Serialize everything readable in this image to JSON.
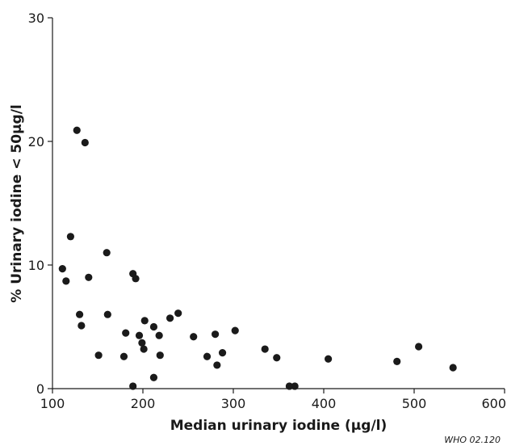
{
  "chart_data": {
    "type": "scatter",
    "title": "",
    "xlabel": "Median urinary iodine (μg/l)",
    "ylabel": "% Urinary iodine < 50μg/l",
    "xlim": [
      100,
      600
    ],
    "ylim": [
      0,
      30
    ],
    "xticks": [
      100,
      200,
      300,
      400,
      500,
      600
    ],
    "yticks": [
      0,
      10,
      20,
      30
    ],
    "grid": false,
    "legend": "none",
    "marker_color": "#1a1a1a",
    "points": [
      {
        "x": 111,
        "y": 9.7
      },
      {
        "x": 115,
        "y": 8.7
      },
      {
        "x": 120,
        "y": 12.3
      },
      {
        "x": 127,
        "y": 20.9
      },
      {
        "x": 130,
        "y": 6.0
      },
      {
        "x": 132,
        "y": 5.1
      },
      {
        "x": 136,
        "y": 19.9
      },
      {
        "x": 140,
        "y": 9.0
      },
      {
        "x": 151,
        "y": 2.7
      },
      {
        "x": 160,
        "y": 11.0
      },
      {
        "x": 161,
        "y": 6.0
      },
      {
        "x": 179,
        "y": 2.6
      },
      {
        "x": 181,
        "y": 4.5
      },
      {
        "x": 189,
        "y": 9.3
      },
      {
        "x": 189,
        "y": 0.2
      },
      {
        "x": 192,
        "y": 8.9
      },
      {
        "x": 196,
        "y": 4.3
      },
      {
        "x": 199,
        "y": 3.7
      },
      {
        "x": 201,
        "y": 3.2
      },
      {
        "x": 202,
        "y": 5.5
      },
      {
        "x": 212,
        "y": 5.0
      },
      {
        "x": 212,
        "y": 0.9
      },
      {
        "x": 218,
        "y": 4.3
      },
      {
        "x": 219,
        "y": 2.7
      },
      {
        "x": 230,
        "y": 5.7
      },
      {
        "x": 239,
        "y": 6.1
      },
      {
        "x": 256,
        "y": 4.2
      },
      {
        "x": 271,
        "y": 2.6
      },
      {
        "x": 280,
        "y": 4.4
      },
      {
        "x": 282,
        "y": 1.9
      },
      {
        "x": 288,
        "y": 2.9
      },
      {
        "x": 302,
        "y": 4.7
      },
      {
        "x": 335,
        "y": 3.2
      },
      {
        "x": 348,
        "y": 2.5
      },
      {
        "x": 362,
        "y": 0.2
      },
      {
        "x": 368,
        "y": 0.2
      },
      {
        "x": 405,
        "y": 2.4
      },
      {
        "x": 481,
        "y": 2.2
      },
      {
        "x": 505,
        "y": 3.4
      },
      {
        "x": 543,
        "y": 1.7
      }
    ]
  },
  "credit": "WHO 02.120"
}
